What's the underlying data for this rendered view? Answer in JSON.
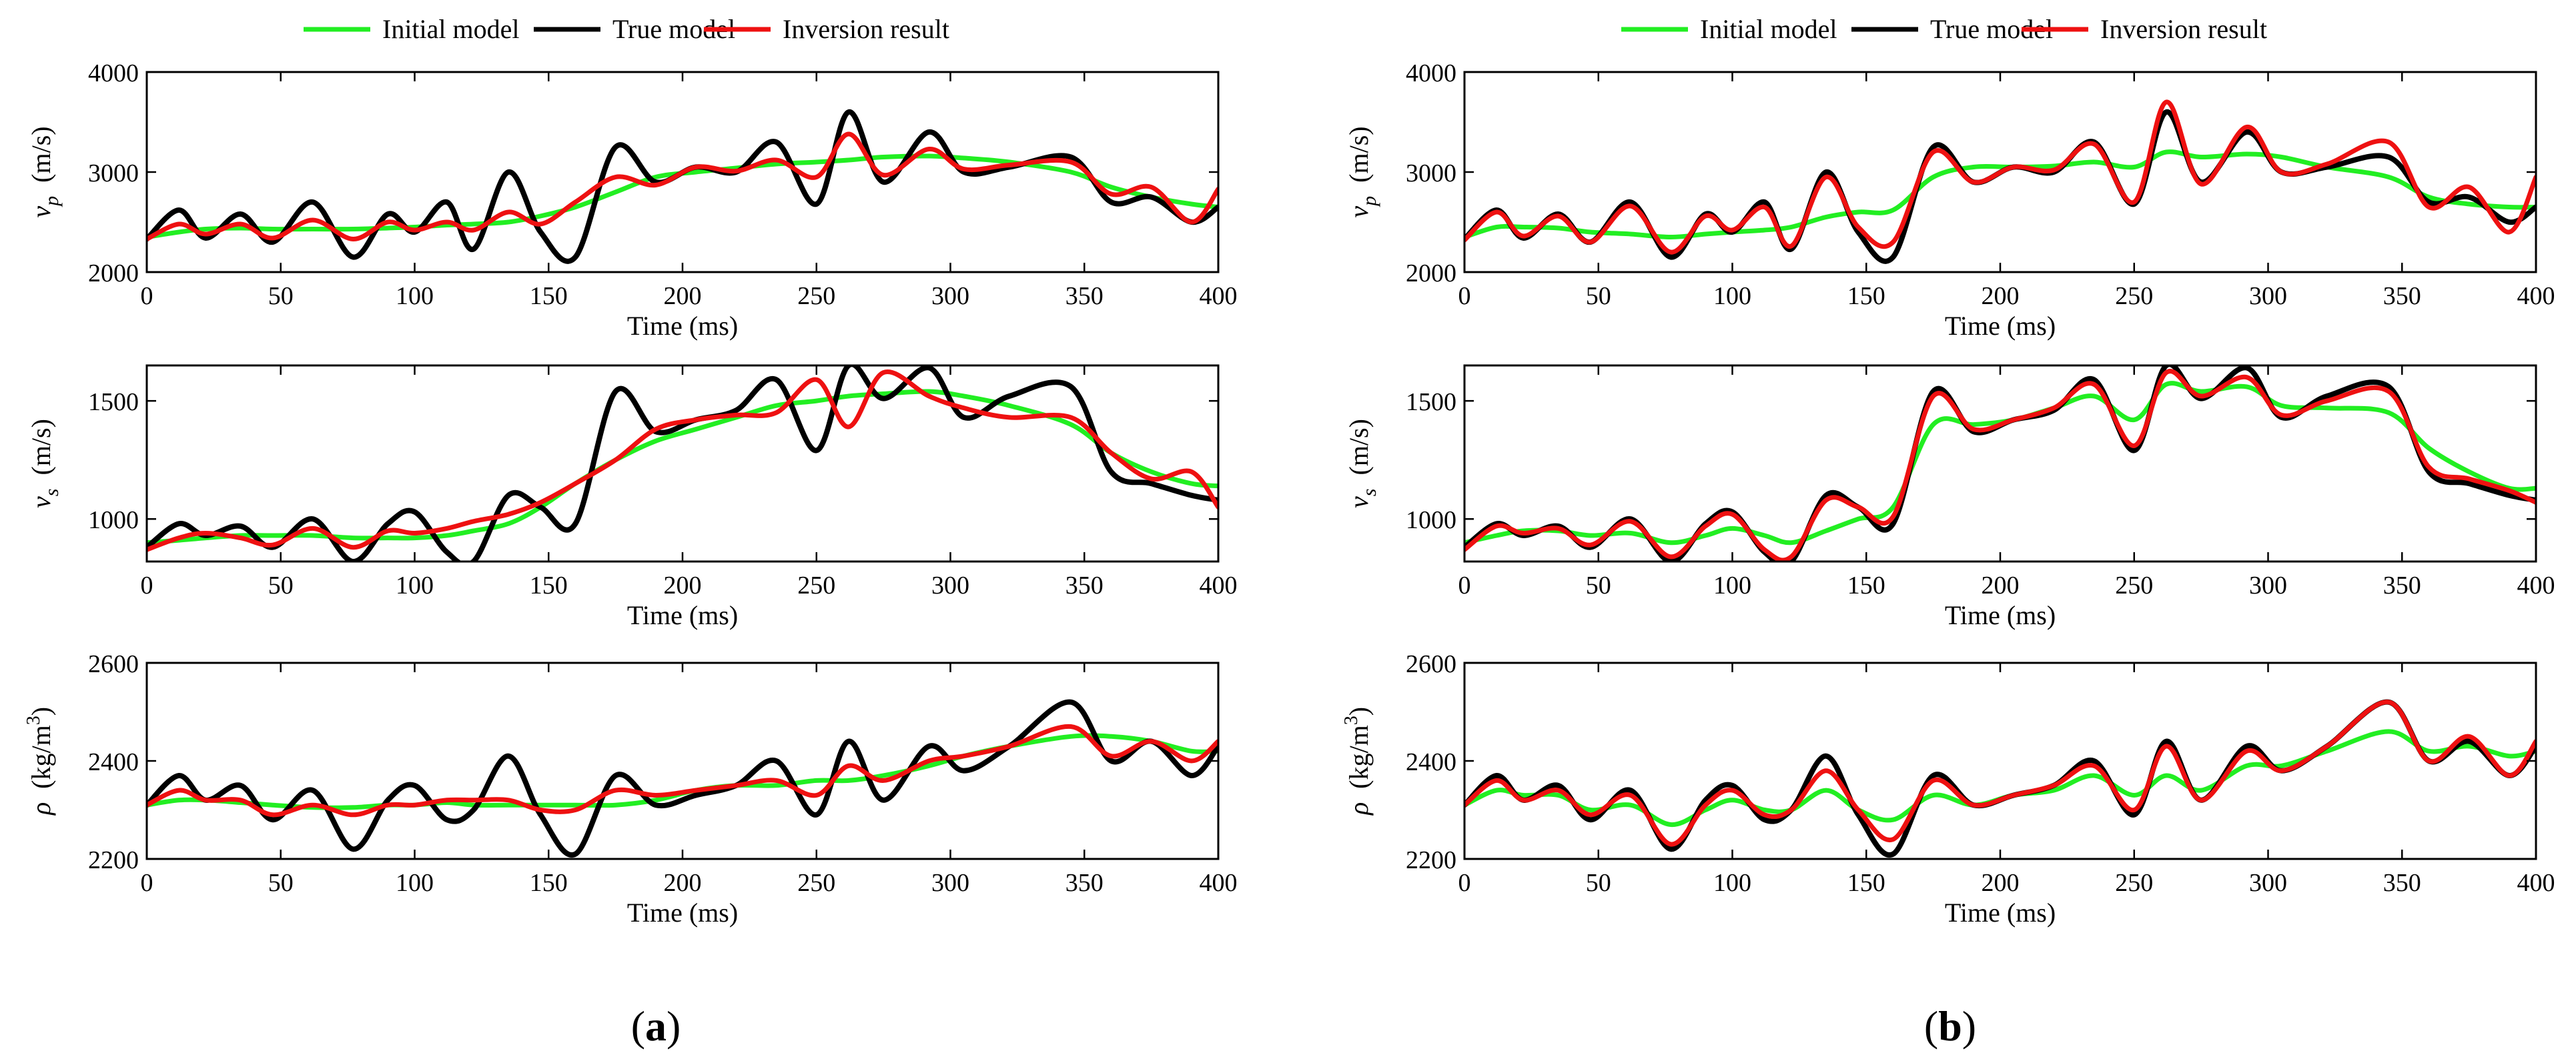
{
  "legend": [
    {
      "label": "Initial model",
      "color": "#22ee22"
    },
    {
      "label": "True model",
      "color": "#000000"
    },
    {
      "label": "Inversion result",
      "color": "#ee1111"
    }
  ],
  "x_axis": {
    "label": "Time (ms)",
    "range": [
      0,
      400
    ],
    "ticks": [
      "0",
      "50",
      "100",
      "150",
      "200",
      "250",
      "300",
      "350",
      "400"
    ]
  },
  "rows": [
    {
      "key": "vp",
      "ylabel_sym": "v",
      "ylabel_sub": "p",
      "ylabel_unit": "(m/s)",
      "ylim": [
        2000,
        4000
      ],
      "ticks": [
        "2000",
        "3000",
        "4000"
      ]
    },
    {
      "key": "vs",
      "ylabel_sym": "v",
      "ylabel_sub": "s",
      "ylabel_unit": "(m/s)",
      "ylim": [
        820,
        1650
      ],
      "ticks": [
        "1000",
        "1500"
      ]
    },
    {
      "key": "rho",
      "ylabel_sym": "ρ",
      "ylabel_unit_pre": "(kg/m",
      "ylabel_unit_sup": "3",
      "ylabel_unit_post": ")",
      "ylim": [
        2200,
        2600
      ],
      "ticks": [
        "2200",
        "2400",
        "2600"
      ]
    }
  ],
  "panels": [
    {
      "caption": "a"
    },
    {
      "caption": "b"
    }
  ],
  "chart_data": {
    "type": "line",
    "x": [
      0,
      12,
      22,
      35,
      47,
      62,
      77,
      90,
      100,
      112,
      122,
      135,
      147,
      160,
      175,
      190,
      205,
      220,
      235,
      250,
      262,
      275,
      292,
      305,
      322,
      345,
      360,
      375,
      390,
      400
    ],
    "series": [
      {
        "name": "True model",
        "vp": [
          2330,
          2620,
          2340,
          2580,
          2300,
          2700,
          2150,
          2580,
          2400,
          2700,
          2230,
          3000,
          2400,
          2150,
          3250,
          2900,
          3050,
          3000,
          3300,
          2680,
          3600,
          2900,
          3400,
          3000,
          3050,
          3150,
          2700,
          2750,
          2500,
          2650
        ],
        "vs": [
          880,
          980,
          930,
          970,
          880,
          1000,
          820,
          980,
          1030,
          860,
          820,
          1100,
          1050,
          980,
          1540,
          1370,
          1420,
          1460,
          1590,
          1290,
          1650,
          1510,
          1640,
          1430,
          1520,
          1560,
          1200,
          1150,
          1100,
          1080
        ],
        "rho": [
          2310,
          2370,
          2320,
          2350,
          2280,
          2340,
          2220,
          2320,
          2350,
          2280,
          2300,
          2410,
          2290,
          2210,
          2370,
          2310,
          2330,
          2350,
          2400,
          2290,
          2440,
          2320,
          2430,
          2380,
          2430,
          2520,
          2400,
          2440,
          2370,
          2430
        ]
      },
      {
        "name": "Initial model",
        "vp": [
          2350,
          2400,
          2430,
          2440,
          2430,
          2430,
          2430,
          2440,
          2450,
          2470,
          2480,
          2500,
          2560,
          2650,
          2800,
          2950,
          3000,
          3040,
          3080,
          3100,
          3120,
          3150,
          3160,
          3140,
          3100,
          3000,
          2850,
          2750,
          2680,
          2650
        ],
        "vs": [
          900,
          910,
          920,
          930,
          930,
          930,
          920,
          920,
          920,
          930,
          950,
          980,
          1050,
          1150,
          1250,
          1330,
          1380,
          1430,
          1480,
          1500,
          1520,
          1530,
          1540,
          1520,
          1480,
          1400,
          1280,
          1200,
          1150,
          1140
        ],
        "rho": [
          2310,
          2320,
          2320,
          2315,
          2310,
          2305,
          2305,
          2310,
          2310,
          2315,
          2310,
          2310,
          2310,
          2310,
          2310,
          2320,
          2340,
          2350,
          2350,
          2360,
          2360,
          2370,
          2390,
          2410,
          2430,
          2450,
          2450,
          2440,
          2420,
          2420
        ]
      },
      {
        "name": "Inversion result",
        "vp": [
          2330,
          2480,
          2380,
          2480,
          2340,
          2520,
          2330,
          2500,
          2420,
          2500,
          2420,
          2600,
          2480,
          2700,
          2950,
          2870,
          3050,
          3010,
          3120,
          2950,
          3380,
          2970,
          3230,
          3030,
          3070,
          3100,
          2780,
          2850,
          2500,
          2830
        ],
        "vs": [
          870,
          920,
          940,
          920,
          890,
          960,
          880,
          950,
          940,
          960,
          990,
          1020,
          1070,
          1150,
          1250,
          1380,
          1420,
          1440,
          1450,
          1590,
          1390,
          1620,
          1520,
          1470,
          1430,
          1430,
          1280,
          1170,
          1200,
          1050
        ],
        "rho": [
          2310,
          2340,
          2320,
          2320,
          2290,
          2310,
          2290,
          2310,
          2310,
          2320,
          2320,
          2320,
          2300,
          2300,
          2340,
          2330,
          2340,
          2350,
          2360,
          2330,
          2390,
          2360,
          2400,
          2410,
          2430,
          2470,
          2410,
          2440,
          2400,
          2440
        ]
      }
    ],
    "panel_b_series": [
      {
        "name": "True model",
        "vp": [
          2330,
          2620,
          2340,
          2580,
          2300,
          2700,
          2150,
          2580,
          2400,
          2700,
          2230,
          3000,
          2400,
          2150,
          3250,
          2900,
          3050,
          3000,
          3300,
          2680,
          3600,
          2900,
          3400,
          3000,
          3050,
          3150,
          2700,
          2750,
          2500,
          2650
        ],
        "vs": [
          880,
          980,
          930,
          970,
          880,
          1000,
          820,
          980,
          1030,
          860,
          820,
          1100,
          1050,
          980,
          1540,
          1370,
          1420,
          1460,
          1590,
          1290,
          1650,
          1510,
          1640,
          1430,
          1520,
          1560,
          1200,
          1150,
          1100,
          1080
        ],
        "rho": [
          2310,
          2370,
          2320,
          2350,
          2280,
          2340,
          2220,
          2320,
          2350,
          2280,
          2300,
          2410,
          2290,
          2210,
          2370,
          2310,
          2330,
          2350,
          2400,
          2290,
          2440,
          2320,
          2430,
          2380,
          2430,
          2520,
          2400,
          2440,
          2370,
          2430
        ]
      },
      {
        "name": "Initial model",
        "vp": [
          2350,
          2450,
          2450,
          2440,
          2400,
          2380,
          2350,
          2380,
          2400,
          2420,
          2450,
          2550,
          2600,
          2620,
          2950,
          3050,
          3050,
          3060,
          3100,
          3050,
          3200,
          3150,
          3180,
          3150,
          3050,
          2950,
          2750,
          2680,
          2650,
          2650
        ],
        "vs": [
          900,
          930,
          950,
          950,
          930,
          940,
          900,
          930,
          960,
          930,
          900,
          950,
          1000,
          1050,
          1400,
          1400,
          1420,
          1470,
          1520,
          1420,
          1570,
          1540,
          1560,
          1480,
          1470,
          1450,
          1300,
          1200,
          1130,
          1130
        ],
        "rho": [
          2310,
          2340,
          2330,
          2330,
          2300,
          2310,
          2270,
          2300,
          2320,
          2300,
          2300,
          2340,
          2300,
          2280,
          2330,
          2310,
          2330,
          2340,
          2370,
          2330,
          2370,
          2340,
          2390,
          2390,
          2420,
          2460,
          2420,
          2430,
          2410,
          2420
        ]
      },
      {
        "name": "Inversion result",
        "vp": [
          2320,
          2600,
          2360,
          2560,
          2300,
          2660,
          2200,
          2560,
          2420,
          2650,
          2260,
          2950,
          2450,
          2300,
          3200,
          2900,
          3050,
          3020,
          3280,
          2700,
          3700,
          2880,
          3450,
          3000,
          3080,
          3300,
          2650,
          2850,
          2400,
          2950
        ],
        "vs": [
          870,
          970,
          940,
          960,
          890,
          990,
          840,
          970,
          1020,
          870,
          840,
          1080,
          1050,
          1010,
          1520,
          1380,
          1420,
          1470,
          1570,
          1310,
          1620,
          1520,
          1600,
          1440,
          1500,
          1540,
          1220,
          1170,
          1120,
          1070
        ],
        "rho": [
          2310,
          2360,
          2320,
          2340,
          2290,
          2330,
          2230,
          2310,
          2340,
          2290,
          2300,
          2380,
          2300,
          2240,
          2360,
          2310,
          2330,
          2350,
          2390,
          2300,
          2430,
          2320,
          2420,
          2380,
          2430,
          2520,
          2400,
          2450,
          2370,
          2440
        ]
      }
    ]
  }
}
